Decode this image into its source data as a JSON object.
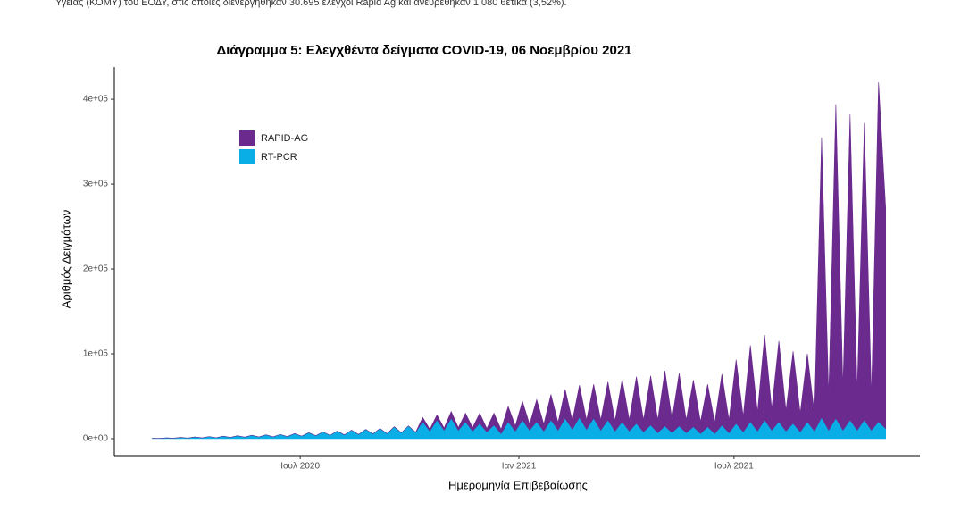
{
  "document": {
    "text": "Υγείας (ΚΟΜΥ) του ΕΟΔΥ, στις οποίες διενεργήθηκαν 30.695 έλεγχοι Rapid Ag και ανευρέθηκαν 1.080 θετικά (3,52%)."
  },
  "chart_data": {
    "type": "stacked_area",
    "title": "Διάγραμμα 5: Ελεγχθέντα δείγματα COVID-19, 06 Νοεμβρίου 2021",
    "x_label": "Ημερομηνία Επιβεβαίωσης",
    "y_label": "Αριθμός Δειγμάτων",
    "legend": "upper left",
    "categories": [
      null,
      null,
      null,
      null,
      null,
      null,
      null,
      null,
      null,
      null,
      null,
      null,
      null,
      null,
      null,
      null,
      null,
      null,
      null,
      null,
      null,
      null,
      null,
      null,
      null,
      null,
      null,
      null,
      null,
      null,
      null,
      null,
      null,
      null,
      null,
      null,
      null,
      null,
      null,
      null,
      null,
      null,
      null,
      null,
      null,
      null,
      null,
      null,
      null,
      null,
      null,
      null,
      null,
      null,
      null,
      null,
      null,
      null,
      null,
      null,
      null,
      null,
      null,
      null,
      null,
      null,
      null,
      null,
      null,
      null,
      null,
      null,
      null,
      null,
      null,
      null,
      null,
      null,
      null,
      null,
      null,
      null,
      null,
      null,
      null,
      null,
      null,
      null,
      null,
      null,
      null,
      null,
      null,
      null,
      null,
      null,
      null,
      null,
      null,
      null,
      null,
      null,
      null,
      null
    ],
    "xlim": [
      -5.3,
      107.8
    ],
    "xticks": [
      {
        "value": 20.8,
        "label": "Ιουλ 2020"
      },
      {
        "value": 51.5,
        "label": "Ιαν 2021"
      },
      {
        "value": 81.7,
        "label": "Ιουλ 2021"
      }
    ],
    "ylim": [
      -20000,
      438000
    ],
    "yticks": [
      {
        "value": 0,
        "label": "0e+00"
      },
      {
        "value": 100000,
        "label": "1e+05"
      },
      {
        "value": 200000,
        "label": "2e+05"
      },
      {
        "value": 300000,
        "label": "3e+05"
      },
      {
        "value": 400000,
        "label": "4e+05"
      }
    ],
    "series": [
      {
        "name": "RT-PCR",
        "color": "#0aaee6",
        "values": [
          500,
          300,
          1000,
          600,
          1500,
          800,
          2000,
          1000,
          2500,
          1200,
          3000,
          1500,
          3500,
          1800,
          4000,
          2000,
          4500,
          2200,
          5000,
          2500,
          6000,
          3000,
          7000,
          3500,
          8000,
          4000,
          9000,
          4500,
          10000,
          5000,
          11000,
          5500,
          12000,
          6000,
          14000,
          7000,
          15000,
          7500,
          20000,
          9000,
          22000,
          10000,
          24000,
          10000,
          20000,
          9000,
          18000,
          8000,
          16000,
          6000,
          20000,
          9000,
          22000,
          10000,
          20000,
          9000,
          22000,
          10000,
          24000,
          11000,
          25000,
          11000,
          24000,
          10000,
          22000,
          9000,
          20000,
          9000,
          18000,
          8000,
          16000,
          7000,
          15000,
          7000,
          15000,
          7000,
          14000,
          6000,
          14000,
          6000,
          16000,
          7000,
          18000,
          8000,
          20000,
          9000,
          22000,
          10000,
          20000,
          9000,
          18000,
          8000,
          20000,
          9000,
          25000,
          10000,
          24000,
          10000,
          22000,
          10000,
          22000,
          10000,
          20000,
          12000
        ]
      },
      {
        "name": "RAPID-AG",
        "color": "#6a2a8e",
        "values": [
          0,
          0,
          0,
          0,
          0,
          0,
          0,
          0,
          0,
          0,
          0,
          0,
          0,
          0,
          0,
          0,
          0,
          0,
          0,
          0,
          0,
          0,
          0,
          0,
          0,
          0,
          0,
          0,
          0,
          0,
          0,
          0,
          0,
          0,
          0,
          0,
          0,
          0,
          5000,
          2000,
          6000,
          2500,
          8000,
          3000,
          10000,
          4000,
          12000,
          4000,
          14000,
          5000,
          18000,
          6000,
          22000,
          7000,
          26000,
          8000,
          30000,
          9000,
          34000,
          10000,
          38000,
          11000,
          40000,
          12000,
          45000,
          12000,
          50000,
          13000,
          55000,
          14000,
          58000,
          15000,
          65000,
          16000,
          62000,
          15000,
          55000,
          14000,
          50000,
          13000,
          60000,
          15000,
          75000,
          18000,
          90000,
          22000,
          100000,
          25000,
          95000,
          24000,
          85000,
          22000,
          80000,
          20000,
          330000,
          40000,
          370000,
          50000,
          360000,
          45000,
          350000,
          40000,
          400000,
          260000
        ]
      }
    ]
  }
}
